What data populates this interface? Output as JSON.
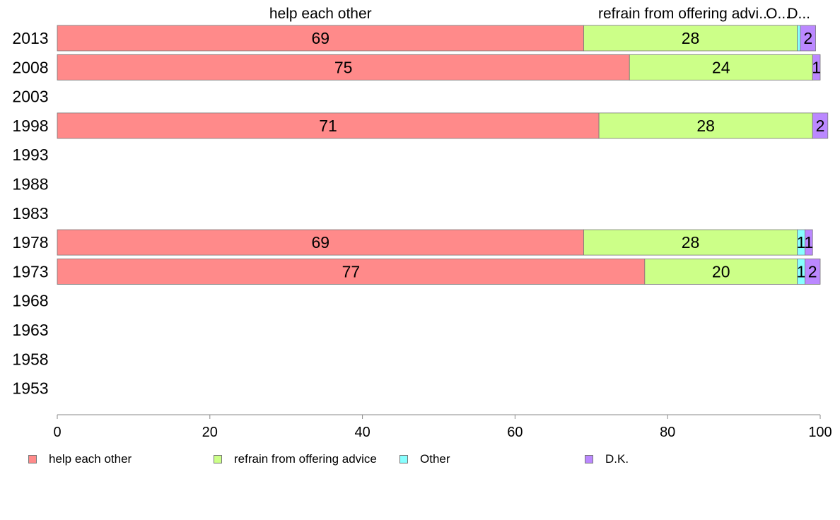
{
  "chart_data": {
    "type": "bar",
    "orientation": "horizontal",
    "stacked": true,
    "categories": [
      "2013",
      "2008",
      "2003",
      "1998",
      "1993",
      "1988",
      "1983",
      "1978",
      "1973",
      "1968",
      "1963",
      "1958",
      "1953"
    ],
    "series": [
      {
        "name": "help each other",
        "values": [
          69,
          75,
          null,
          71,
          null,
          null,
          null,
          69,
          77,
          null,
          null,
          null,
          null
        ]
      },
      {
        "name": "refrain from offering advice",
        "values": [
          28,
          24,
          null,
          28,
          null,
          null,
          null,
          28,
          20,
          null,
          null,
          null,
          null
        ]
      },
      {
        "name": "Other",
        "values": [
          0.4,
          0,
          null,
          0,
          null,
          null,
          null,
          1,
          1,
          null,
          null,
          null,
          null
        ]
      },
      {
        "name": "D.K.",
        "values": [
          2,
          1,
          null,
          2,
          null,
          null,
          null,
          1,
          2,
          null,
          null,
          null,
          null
        ]
      }
    ],
    "data_labels": [
      [
        "69",
        "75",
        "",
        "71",
        "",
        "",
        "",
        "69",
        "77",
        "",
        "",
        "",
        ""
      ],
      [
        "28",
        "24",
        "",
        "28",
        "",
        "",
        "",
        "28",
        "20",
        "",
        "",
        "",
        ""
      ],
      [
        "",
        "",
        "",
        "",
        "",
        "",
        "",
        "1",
        "1",
        "",
        "",
        "",
        ""
      ],
      [
        "2",
        "1",
        "",
        "2",
        "",
        "",
        "",
        "1",
        "2",
        "",
        "",
        "",
        ""
      ]
    ],
    "top_labels": [
      "help each other",
      "refrain from offering advi...",
      "O...",
      "D..."
    ],
    "colors": [
      "#ff8a8a",
      "#ccff88",
      "#88ffff",
      "#bb88ff"
    ],
    "xlim": [
      0,
      100
    ],
    "xticks": [
      "0",
      "20",
      "40",
      "60",
      "80",
      "100"
    ],
    "grid": false,
    "legend_position": "bottom"
  },
  "legend": {
    "items": [
      {
        "label": "help each other",
        "color": "#ff8a8a"
      },
      {
        "label": "refrain from offering advice",
        "color": "#ccff88"
      },
      {
        "label": "Other",
        "color": "#88ffff"
      },
      {
        "label": "D.K.",
        "color": "#bb88ff"
      }
    ]
  }
}
